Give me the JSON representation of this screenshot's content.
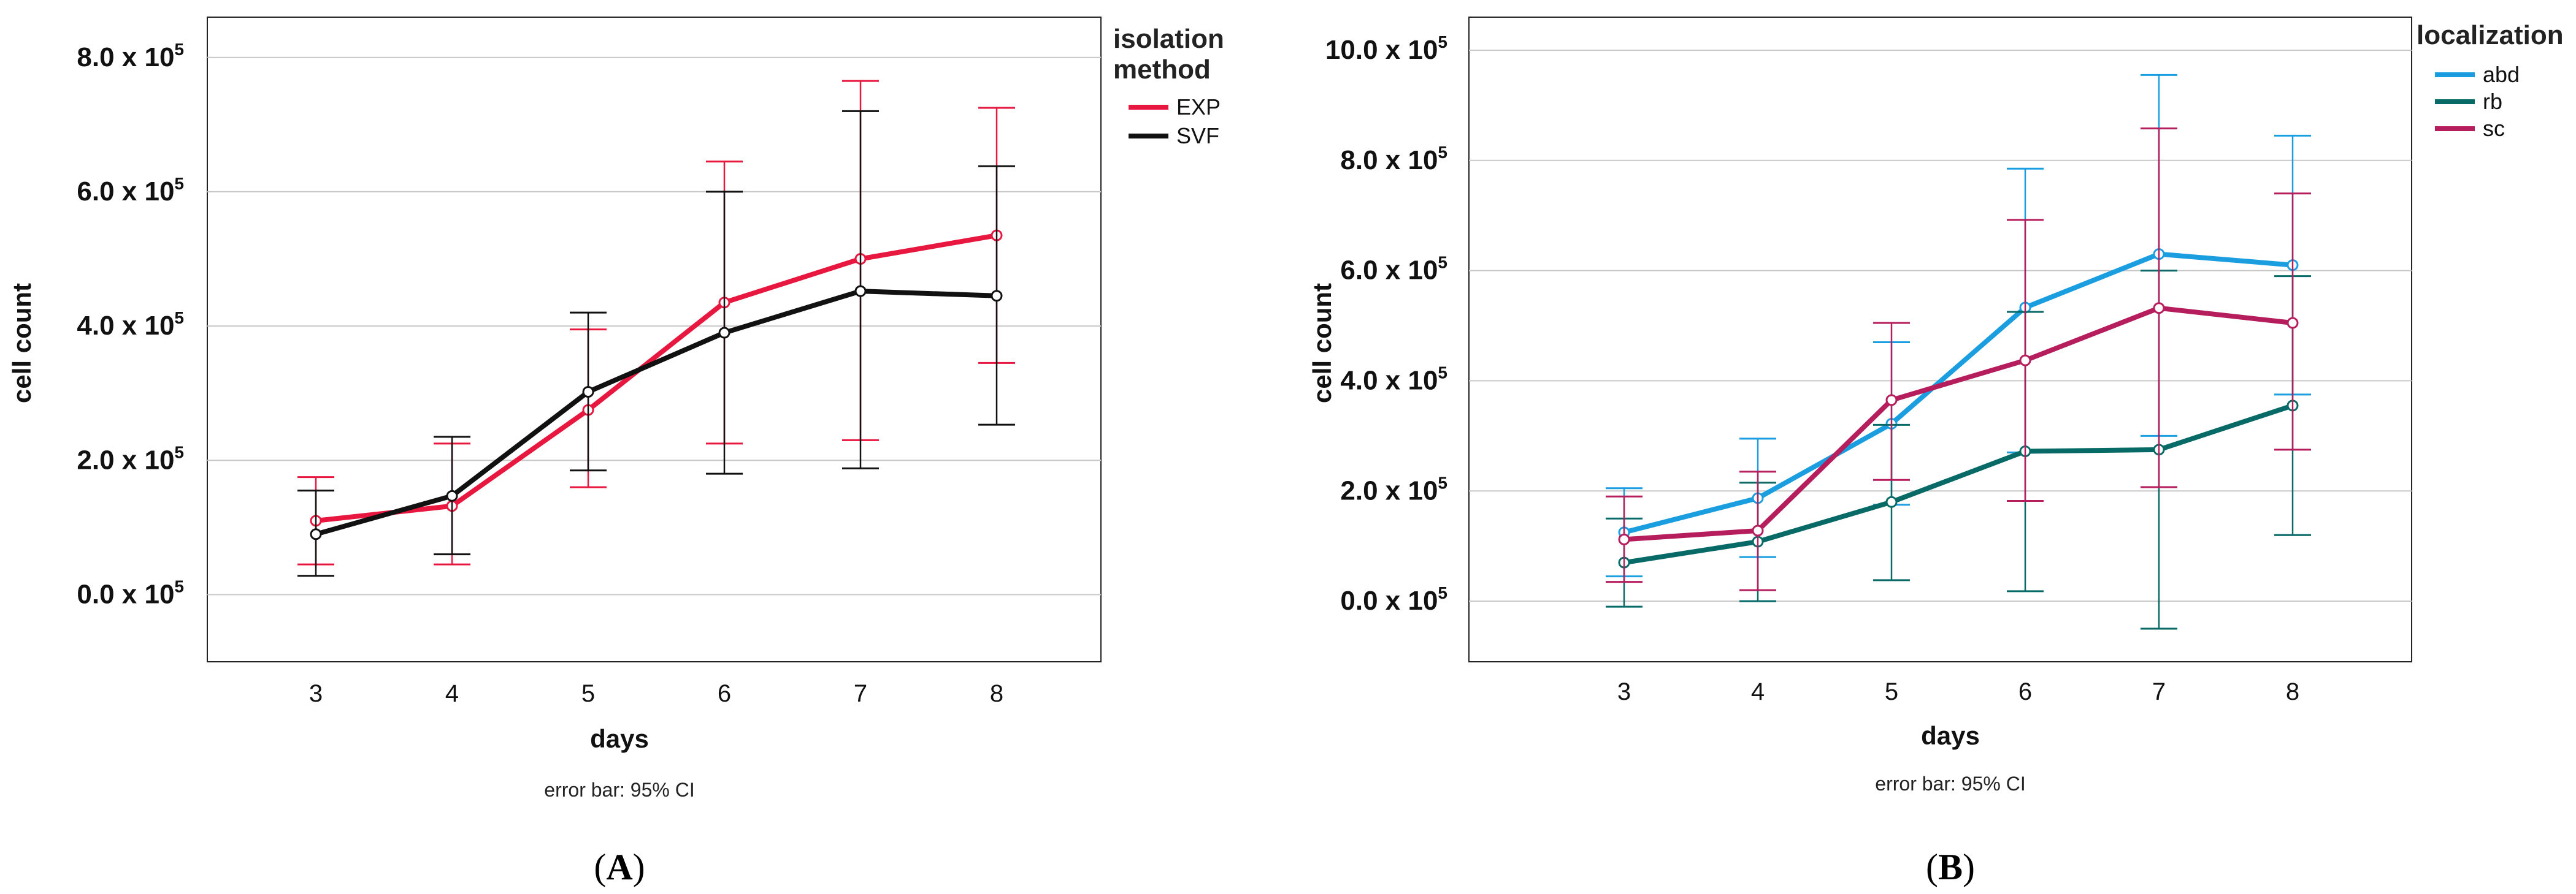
{
  "chart_data": [
    {
      "panel": "A",
      "type": "line",
      "x": [
        3,
        4,
        5,
        6,
        7,
        8
      ],
      "xlabel": "days",
      "ylabel": "cell count",
      "ylim": [
        -100000,
        860000
      ],
      "yticks": [
        0,
        200000,
        400000,
        600000,
        800000
      ],
      "ytick_labels": [
        "0.0 x 10",
        "2.0 x 10",
        "4.0 x 10",
        "6.0 x 10",
        "8.0 x 10"
      ],
      "ytick_exponent": "5",
      "caption": "error bar: 95% CI",
      "legend_title": [
        "isolation",
        "method"
      ],
      "legend_position": "top-right",
      "series": [
        {
          "name": "EXP",
          "color": "#e8173f",
          "values": [
            110000,
            132000,
            275000,
            435000,
            500000,
            535000
          ],
          "ci_low": [
            45000,
            45000,
            160000,
            225000,
            230000,
            345000
          ],
          "ci_high": [
            175000,
            225000,
            395000,
            645000,
            765000,
            725000
          ]
        },
        {
          "name": "SVF",
          "color": "#111111",
          "values": [
            90000,
            147000,
            302000,
            390000,
            452000,
            445000
          ],
          "ci_low": [
            28000,
            60000,
            185000,
            180000,
            188000,
            253000
          ],
          "ci_high": [
            155000,
            235000,
            420000,
            600000,
            720000,
            638000
          ]
        }
      ]
    },
    {
      "panel": "B",
      "type": "line",
      "x": [
        3,
        4,
        5,
        6,
        7,
        8
      ],
      "xlabel": "days",
      "ylabel": "cell count",
      "ylim": [
        -110000,
        1060000
      ],
      "yticks": [
        0,
        200000,
        400000,
        600000,
        800000,
        1000000
      ],
      "ytick_labels": [
        "0.0 x 10",
        "2.0 x 10",
        "4.0 x 10",
        "6.0 x 10",
        "8.0 x 10",
        "10.0 x 10"
      ],
      "ytick_exponent": "5",
      "caption": "error bar: 95% CI",
      "legend_title": [
        "localization"
      ],
      "legend_position": "top-right",
      "series": [
        {
          "name": "abd",
          "color": "#1a9ee0",
          "values": [
            125000,
            187000,
            322000,
            533000,
            630000,
            610000
          ],
          "ci_low": [
            45000,
            80000,
            175000,
            270000,
            300000,
            375000
          ],
          "ci_high": [
            205000,
            295000,
            470000,
            785000,
            955000,
            845000
          ]
        },
        {
          "name": "rb",
          "color": "#086a66",
          "values": [
            70000,
            108000,
            180000,
            272000,
            275000,
            355000
          ],
          "ci_low": [
            -10000,
            0,
            38000,
            18000,
            -50000,
            120000
          ],
          "ci_high": [
            150000,
            215000,
            320000,
            525000,
            600000,
            590000
          ]
        },
        {
          "name": "sc",
          "color": "#b51d5c",
          "values": [
            112000,
            128000,
            365000,
            437000,
            532000,
            505000
          ],
          "ci_low": [
            35000,
            20000,
            220000,
            182000,
            207000,
            275000
          ],
          "ci_high": [
            190000,
            235000,
            505000,
            692000,
            858000,
            740000
          ]
        }
      ]
    }
  ],
  "panel_labels": [
    {
      "open": "(",
      "letter": "A",
      "close": ")"
    },
    {
      "open": "(",
      "letter": "B",
      "close": ")"
    }
  ]
}
